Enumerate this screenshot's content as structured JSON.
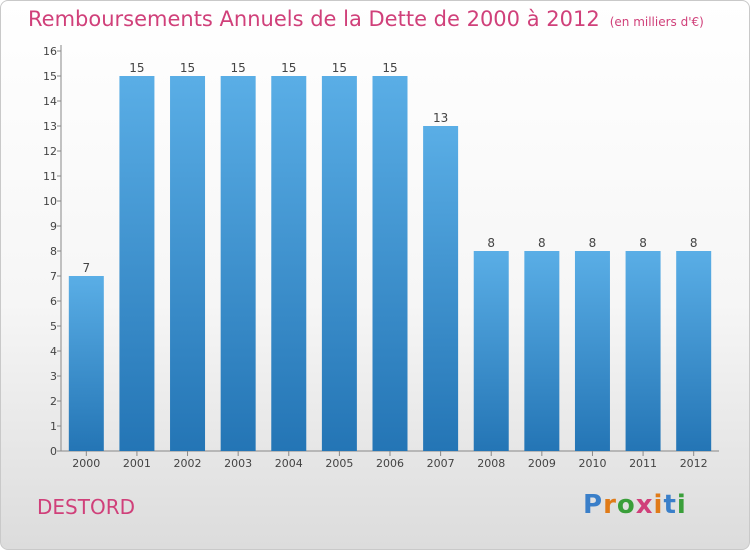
{
  "header": {
    "title": "Remboursements Annuels de la Dette de 2000 à 2012",
    "unit": "(en milliers d'€)"
  },
  "footer": {
    "town": "DESTORD",
    "logo_letters": [
      "P",
      "r",
      "o",
      "x",
      "i",
      "t",
      "i"
    ],
    "logo_colors": [
      "#3a7fc9",
      "#e07b18",
      "#3a9f3a",
      "#d0407a",
      "#e07b18",
      "#3a7fc9",
      "#3a9f3a"
    ]
  },
  "colors": {
    "bar_light": "#5aaee6",
    "bar_dark": "#2475b5",
    "title": "#d0407a"
  },
  "chart_data": {
    "type": "bar",
    "title": "Remboursements Annuels de la Dette de 2000 à 2012",
    "subtitle": "(en milliers d'€)",
    "categories": [
      "2000",
      "2001",
      "2002",
      "2003",
      "2004",
      "2005",
      "2006",
      "2007",
      "2008",
      "2009",
      "2010",
      "2011",
      "2012"
    ],
    "values": [
      7,
      15,
      15,
      15,
      15,
      15,
      15,
      13,
      8,
      8,
      8,
      8,
      8
    ],
    "ylim": [
      0,
      16
    ],
    "yticks": [
      0,
      1,
      2,
      3,
      4,
      5,
      6,
      7,
      8,
      9,
      10,
      11,
      12,
      13,
      14,
      15,
      16
    ],
    "grid": false,
    "legend": "none"
  }
}
